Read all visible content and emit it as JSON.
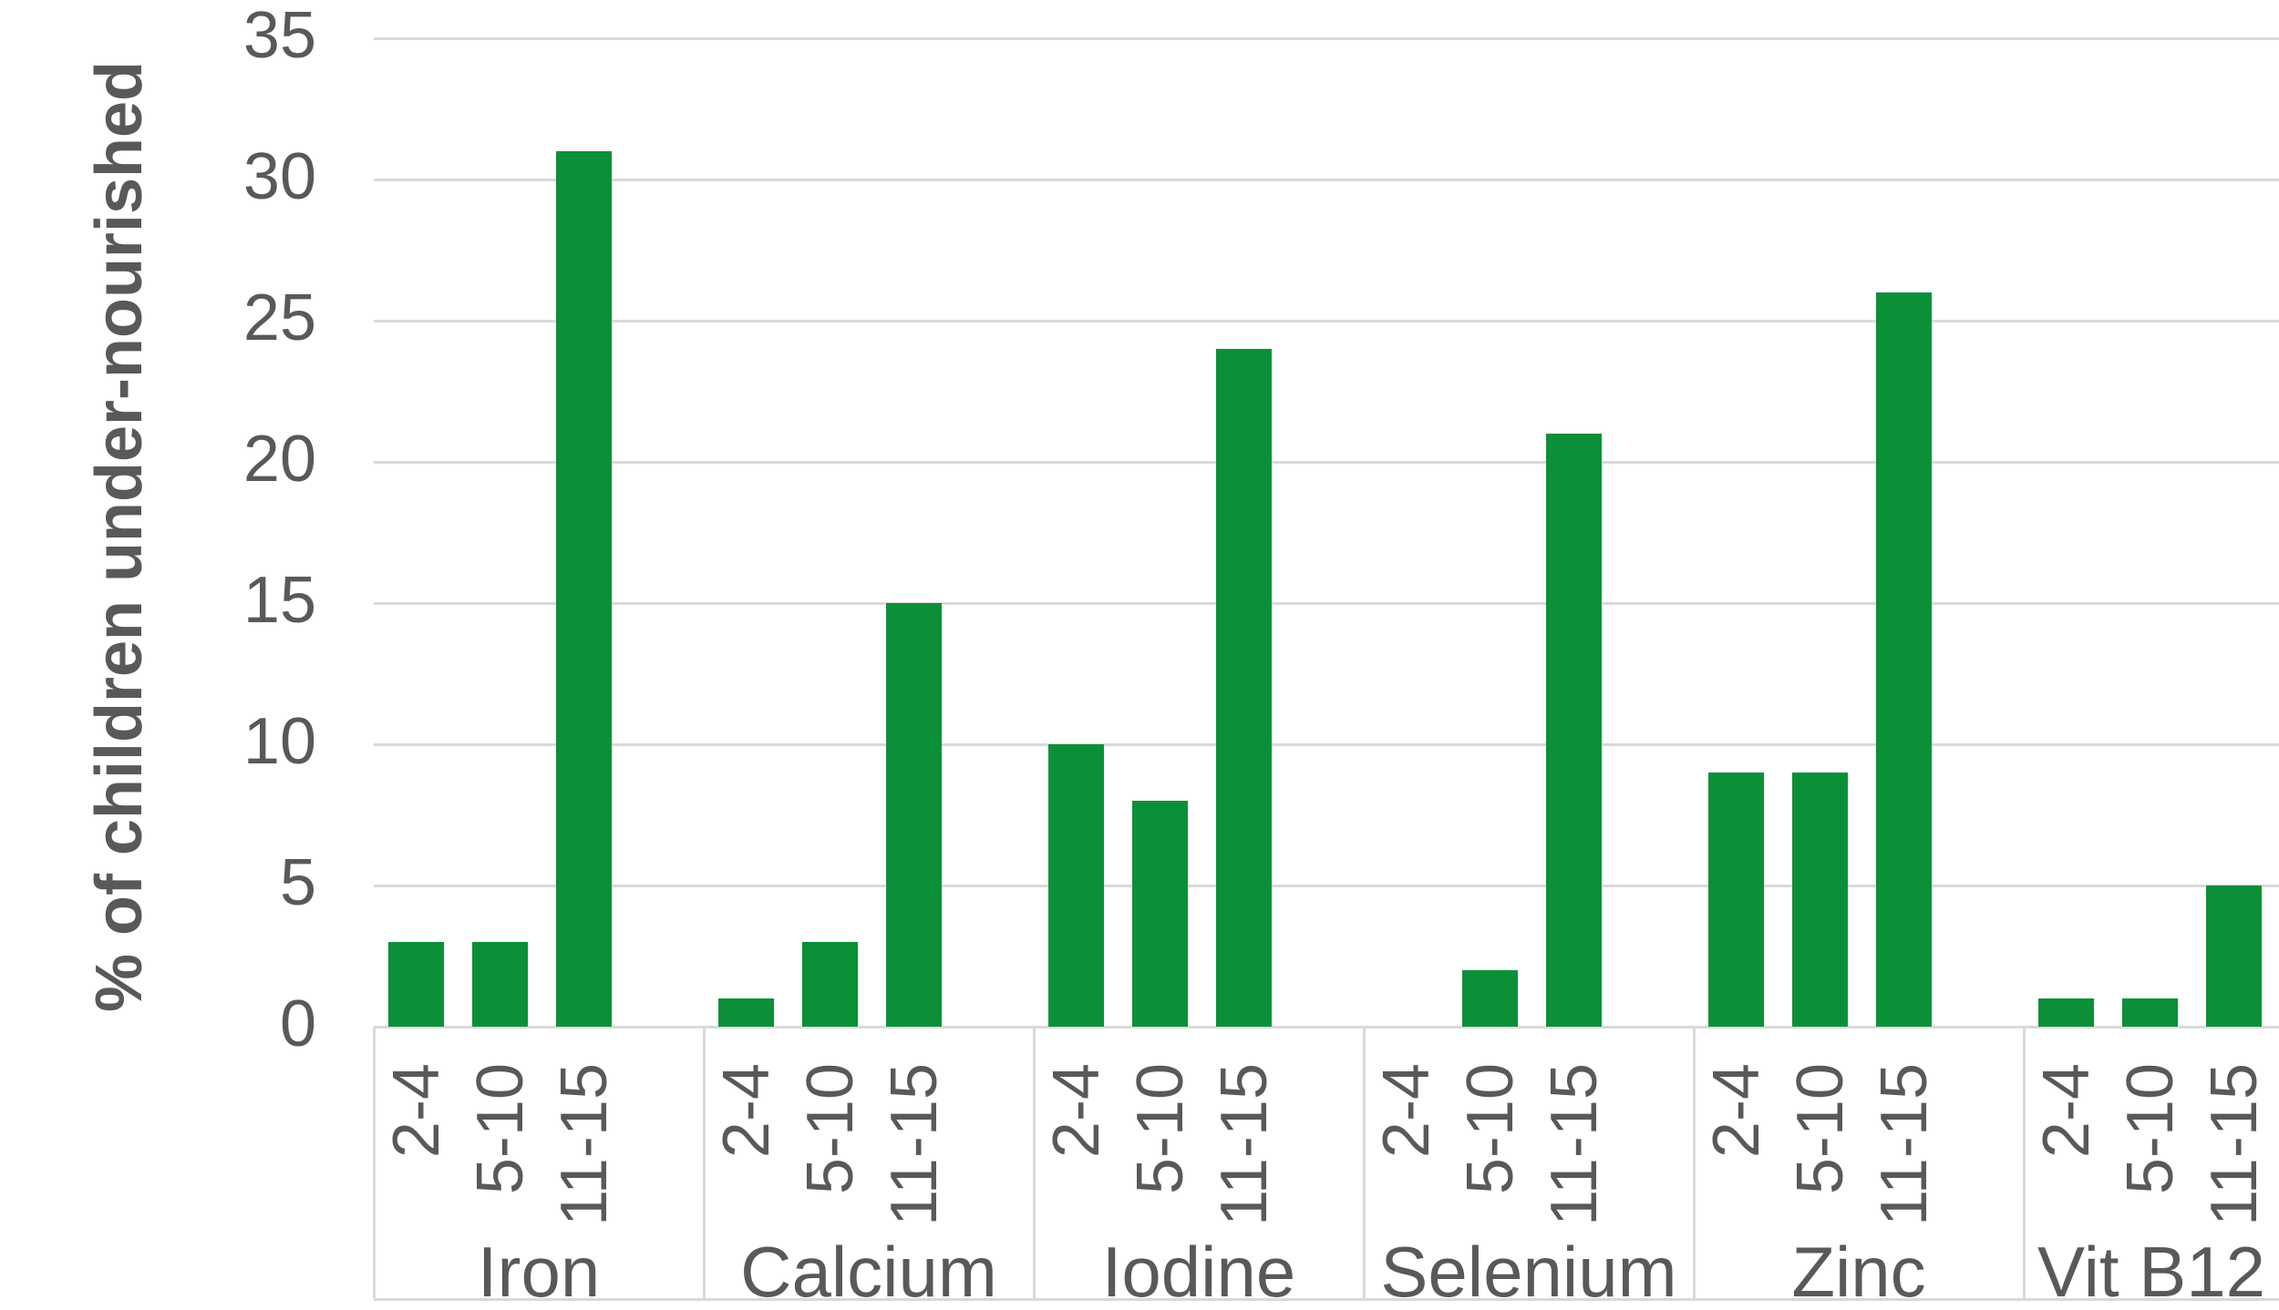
{
  "chart_data": {
    "type": "bar",
    "title": "",
    "ylabel": "% of children under-nourished",
    "xlabel": "",
    "ylim": [
      0,
      35
    ],
    "ytick_step": 5,
    "yticks": [
      0,
      5,
      10,
      15,
      20,
      25,
      30,
      35
    ],
    "grid": "horizontal",
    "legend": "none",
    "bar_color": "#0b9038",
    "grid_color": "#d9d9d9",
    "text_color": "#595959",
    "categories": [
      "Iron",
      "Calcium",
      "Iodine",
      "Selenium",
      "Zinc",
      "Vit B12"
    ],
    "age_groups": [
      "2-4",
      "5-10",
      "11-15"
    ],
    "series": [
      {
        "name": "Iron",
        "values": [
          3,
          3,
          31
        ]
      },
      {
        "name": "Calcium",
        "values": [
          1,
          3,
          15
        ]
      },
      {
        "name": "Iodine",
        "values": [
          10,
          8,
          24
        ]
      },
      {
        "name": "Selenium",
        "values": [
          0,
          2,
          21
        ]
      },
      {
        "name": "Zinc",
        "values": [
          9,
          9,
          26
        ]
      },
      {
        "name": "Vit B12",
        "values": [
          1,
          1,
          5
        ]
      }
    ]
  }
}
